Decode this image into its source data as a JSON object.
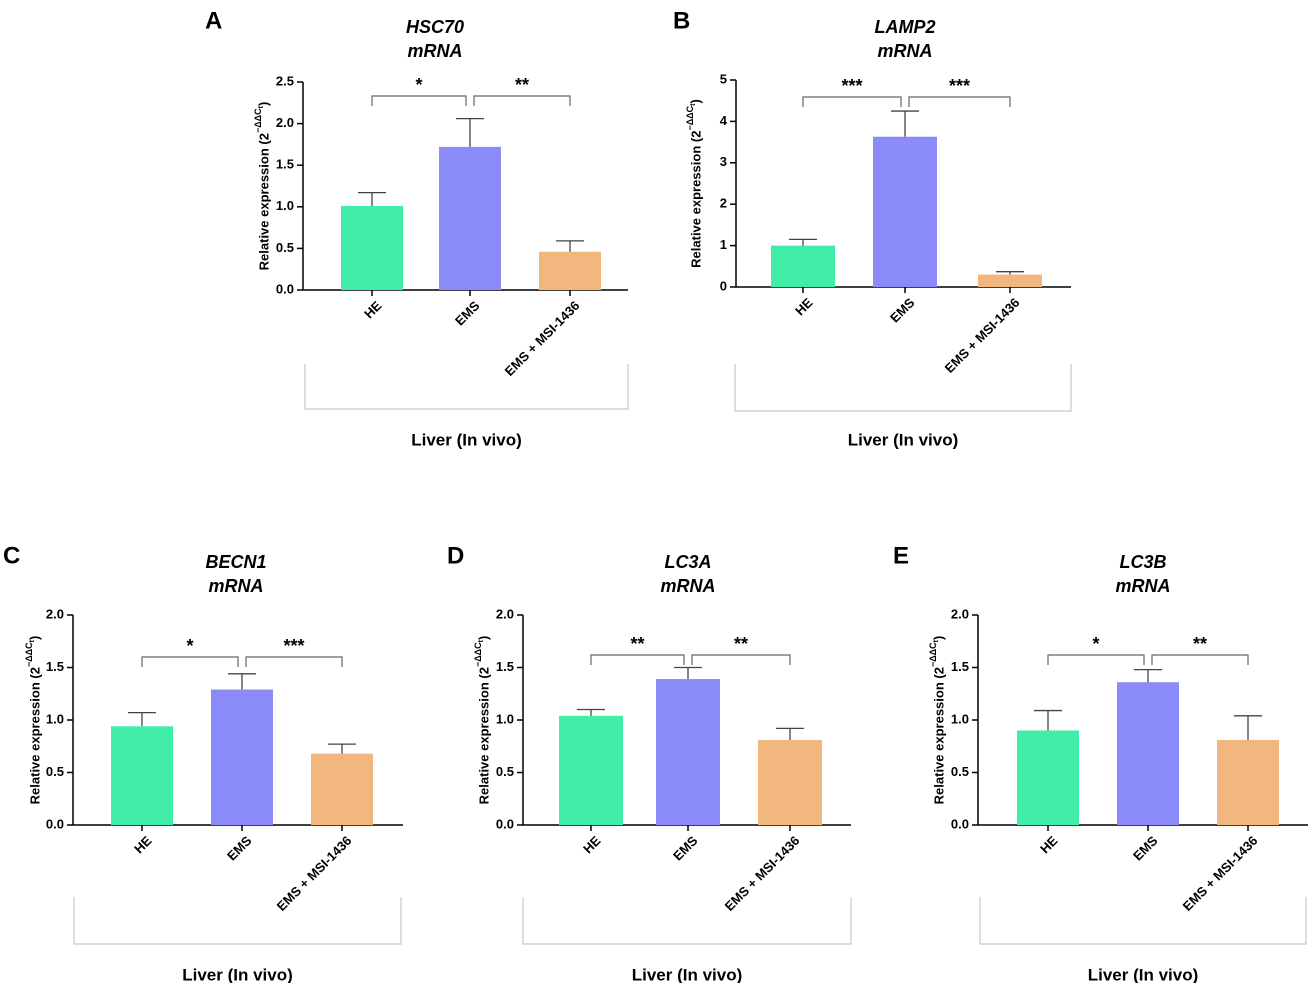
{
  "colors": {
    "HE": "#40eeaa",
    "EMS": "#8a8af8",
    "EMS + MSI-1436": "#f2b77e",
    "axis": "#000000",
    "bracket": "#666666",
    "group_box": "#c8c8c8"
  },
  "chart_data": [
    {
      "type": "bar",
      "panel_label": "A",
      "title": [
        "HSC70",
        "mRNA"
      ],
      "ylabel": "Relative expression (2⁻ΔΔCᵗ)",
      "ylabel_parts": [
        "Relative expression (2",
        "−ΔΔC",
        "t",
        ")"
      ],
      "categories": [
        "HE",
        "EMS",
        "EMS + MSI-1436"
      ],
      "values": [
        1.01,
        1.72,
        0.46
      ],
      "errors": [
        0.16,
        0.34,
        0.13
      ],
      "ylim": [
        0,
        2.5
      ],
      "yticks": [
        "0.0",
        "0.5",
        "1.0",
        "1.5",
        "2.0",
        "2.5"
      ],
      "group_label": "Liver (In vivo)",
      "significance": [
        "*",
        "**"
      ]
    },
    {
      "type": "bar",
      "panel_label": "B",
      "title": [
        "LAMP2",
        "mRNA"
      ],
      "ylabel": "Relative expression (2⁻ΔΔCᵗ)",
      "ylabel_parts": [
        "Relative expression (2",
        "−ΔΔC",
        "t",
        ")"
      ],
      "categories": [
        "HE",
        "EMS",
        "EMS + MSI-1436"
      ],
      "values": [
        1.0,
        3.63,
        0.3
      ],
      "errors": [
        0.15,
        0.62,
        0.07
      ],
      "ylim": [
        0,
        5
      ],
      "yticks": [
        "0",
        "1",
        "2",
        "3",
        "4",
        "5"
      ],
      "group_label": "Liver (In vivo)",
      "significance": [
        "***",
        "***"
      ]
    },
    {
      "type": "bar",
      "panel_label": "C",
      "title": [
        "BECN1",
        "mRNA"
      ],
      "ylabel": "Relative expression (2⁻ΔΔCᵗ)",
      "ylabel_parts": [
        "Relative expression (2",
        "−ΔΔC",
        "t",
        ")"
      ],
      "categories": [
        "HE",
        "EMS",
        "EMS + MSI-1436"
      ],
      "values": [
        0.94,
        1.29,
        0.68
      ],
      "errors": [
        0.13,
        0.15,
        0.09
      ],
      "ylim": [
        0,
        2.0
      ],
      "yticks": [
        "0.0",
        "0.5",
        "1.0",
        "1.5",
        "2.0"
      ],
      "group_label": "Liver (In vivo)",
      "significance": [
        "*",
        "***"
      ]
    },
    {
      "type": "bar",
      "panel_label": "D",
      "title": [
        "LC3A",
        "mRNA"
      ],
      "ylabel": "Relative expression (2⁻ΔΔCᵗ)",
      "ylabel_parts": [
        "Relative expression (2",
        "−ΔΔC",
        "t",
        ")"
      ],
      "categories": [
        "HE",
        "EMS",
        "EMS + MSI-1436"
      ],
      "values": [
        1.04,
        1.39,
        0.81
      ],
      "errors": [
        0.06,
        0.11,
        0.11
      ],
      "ylim": [
        0,
        2.0
      ],
      "yticks": [
        "0.0",
        "0.5",
        "1.0",
        "1.5",
        "2.0"
      ],
      "group_label": "Liver (In vivo)",
      "significance": [
        "**",
        "**"
      ]
    },
    {
      "type": "bar",
      "panel_label": "E",
      "title": [
        "LC3B",
        "mRNA"
      ],
      "ylabel": "Relative expression (2⁻ΔΔCᵗ)",
      "ylabel_parts": [
        "Relative expression (2",
        "−ΔΔC",
        "t",
        ")"
      ],
      "categories": [
        "HE",
        "EMS",
        "EMS + MSI-1436"
      ],
      "values": [
        0.9,
        1.36,
        0.81
      ],
      "errors": [
        0.19,
        0.12,
        0.23
      ],
      "ylim": [
        0,
        2.0
      ],
      "yticks": [
        "0.0",
        "0.5",
        "1.0",
        "1.5",
        "2.0"
      ],
      "group_label": "Liver (In vivo)",
      "significance": [
        "*",
        "**"
      ]
    }
  ]
}
